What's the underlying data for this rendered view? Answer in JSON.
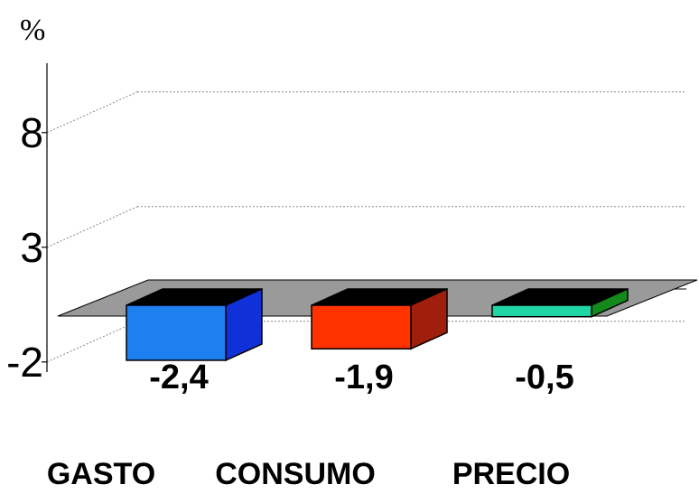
{
  "chart_data": {
    "type": "bar",
    "unit": "%",
    "categories": [
      "GASTO",
      "CONSUMO",
      "PRECIO"
    ],
    "values": [
      -2.4,
      -1.9,
      -0.5
    ],
    "data_labels": [
      "-2,4",
      "-1,9",
      "-0,5"
    ],
    "ylim": [
      -2,
      8
    ],
    "y_ticks": [
      {
        "value": 8,
        "label": "8"
      },
      {
        "value": 3,
        "label": "3"
      },
      {
        "value": -2,
        "label": "-2"
      }
    ],
    "grid": true,
    "legend": "none",
    "colors": {
      "front": [
        "#1e7ff0",
        "#ff3300",
        "#1fd6a6"
      ],
      "side": [
        "#1030d8",
        "#a01e0c",
        "#148a1c"
      ],
      "top": "#000000",
      "floor": "#9a9a9a"
    }
  }
}
